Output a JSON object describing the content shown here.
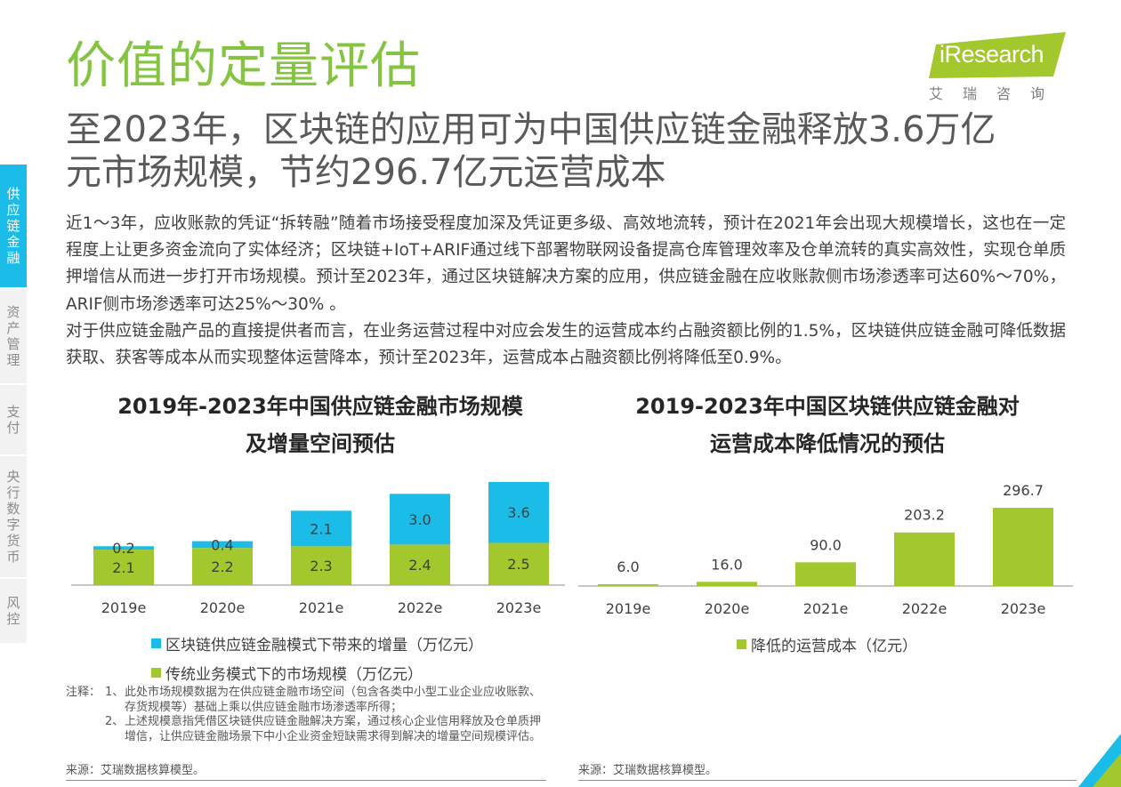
{
  "nav": {
    "items": [
      {
        "label": "供应链金融",
        "active": true
      },
      {
        "label": "资产管理",
        "active": false
      },
      {
        "label": "支付",
        "active": false
      },
      {
        "label": "央行数字货币",
        "active": false
      },
      {
        "label": "风控",
        "active": false
      }
    ]
  },
  "header": {
    "title": "价值的定量评估",
    "logo_text": "iResearch",
    "logo_sub": "艾瑞咨询"
  },
  "headline": {
    "line1": "至2023年，区块链的应用可为中国供应链金融释放3.6万亿",
    "line2": "元市场规模，节约296.7亿元运营成本"
  },
  "body": {
    "para1": "近1～3年，应收账款的凭证“拆转融”随着市场接受程度加深及凭证更多级、高效地流转，预计在2021年会出现大规模增长，这也在一定程度上让更多资金流向了实体经济；区块链+IoT+ARIF通过线下部署物联网设备提高仓库管理效率及仓单流转的真实高效性，实现仓单质押增信从而进一步打开市场规模。预计至2023年，通过区块链解决方案的应用，供应链金融在应收账款侧市场渗透率可达60%～70%， ARIF侧市场渗透率可达25%～30% 。",
    "para2": "对于供应链金融产品的直接提供者而言，在业务运营过程中对应会发生的运营成本约占融资额比例的1.5%，区块链供应链金融可降低数据获取、获客等成本从而实现整体运营降本，预计至2023年，运营成本占融资额比例将降低至0.9%。"
  },
  "colors": {
    "green": "#a3c82e",
    "blue": "#1bbde8",
    "title_green": "#85c441",
    "nav_active": "#1bbde8"
  },
  "chart_data": [
    {
      "type": "bar",
      "stacked": true,
      "title_line1": "2019年-2023年中国供应链金融市场规模",
      "title_line2": "及增量空间预估",
      "categories": [
        "2019e",
        "2020e",
        "2021e",
        "2022e",
        "2023e"
      ],
      "series": [
        {
          "name": "传统业务模式下的市场规模（万亿元）",
          "color": "#a3c82e",
          "values": [
            2.1,
            2.2,
            2.3,
            2.4,
            2.5
          ],
          "labels": [
            "2.1",
            "2.2",
            "2.3",
            "2.4",
            "2.5"
          ]
        },
        {
          "name": "区块链供应链金融模式下带来的增量（万亿元）",
          "color": "#1bbde8",
          "values": [
            0.2,
            0.4,
            2.1,
            3.0,
            3.6
          ],
          "labels": [
            "0.2",
            "0.4",
            "2.1",
            "3.0",
            "3.6"
          ]
        }
      ],
      "ylim": [
        0,
        6.1
      ],
      "legend_position": "bottom",
      "grid": false
    },
    {
      "type": "bar",
      "title_line1": "2019-2023年中国区块链供应链金融对",
      "title_line2": "运营成本降低情况的预估",
      "categories": [
        "2019e",
        "2020e",
        "2021e",
        "2022e",
        "2023e"
      ],
      "series": [
        {
          "name": "降低的运营成本（亿元）",
          "color": "#a3c82e",
          "values": [
            6.0,
            16.0,
            90.0,
            203.2,
            296.7
          ],
          "labels": [
            "6.0",
            "16.0",
            "90.0",
            "203.2",
            "296.7"
          ]
        }
      ],
      "ylim": [
        0,
        296.7
      ],
      "legend_position": "bottom",
      "grid": false
    }
  ],
  "notes": {
    "label": "注释：",
    "items": [
      {
        "num": "1、",
        "text": "此处市场规模数据为在供应链金融市场空间（包含各类中小型工业企业应收账款、 存货规模等）基础上乘以供应链金融市场渗透率所得；"
      },
      {
        "num": "2、",
        "text": "上述规模意指凭借区块链供应链金融解决方案，通过核心企业信用释放及仓单质押增信，让供应链金融场景下中小企业资金短缺需求得到解决的增量空间规模评估。"
      }
    ]
  },
  "sources": {
    "left": "来源：艾瑞数据核算模型。",
    "right": "来源：艾瑞数据核算模型。"
  }
}
